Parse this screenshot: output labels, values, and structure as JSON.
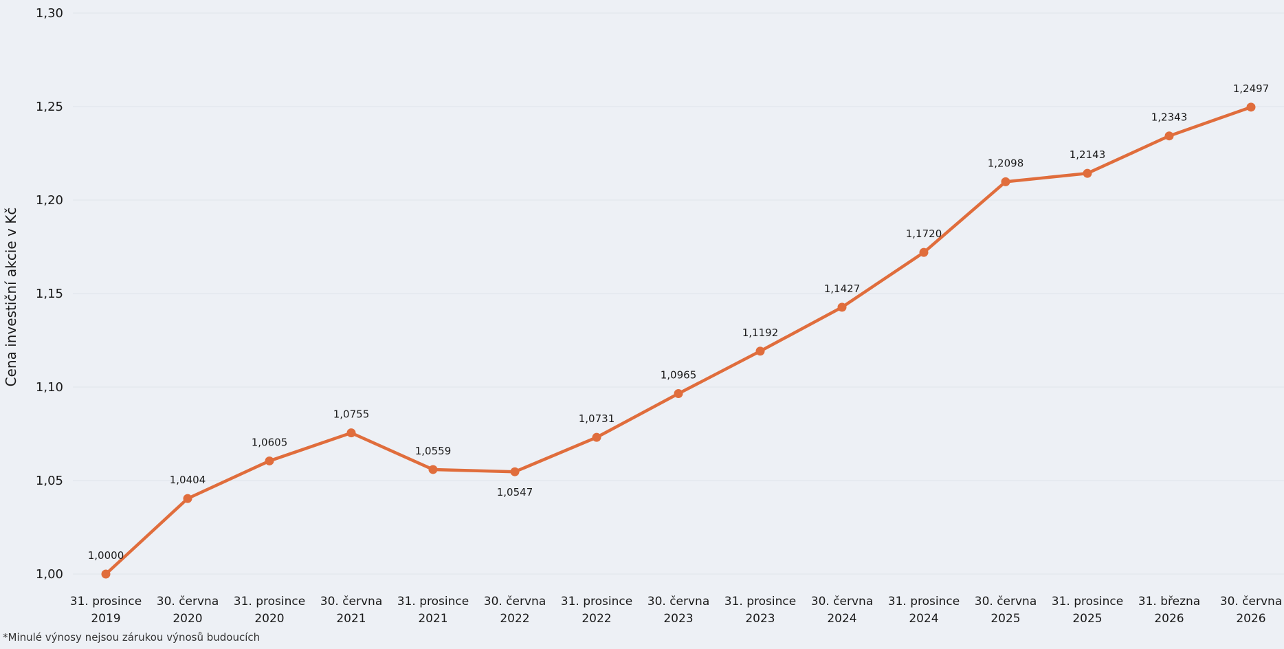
{
  "chart_data": {
    "type": "line",
    "title": "",
    "xlabel": "",
    "ylabel": "Cena investiční akcie v Kč",
    "ylim": [
      1.0,
      1.3
    ],
    "yticks": [
      "1,00",
      "1,05",
      "1,10",
      "1,15",
      "1,20",
      "1,25",
      "1,30"
    ],
    "ytick_values": [
      1.0,
      1.05,
      1.1,
      1.15,
      1.2,
      1.25,
      1.3
    ],
    "grid": true,
    "categories": [
      [
        "31. prosince",
        "2019"
      ],
      [
        "30. června",
        "2020"
      ],
      [
        "31. prosince",
        "2020"
      ],
      [
        "30. června",
        "2021"
      ],
      [
        "31. prosince",
        "2021"
      ],
      [
        "30. června",
        "2022"
      ],
      [
        "31. prosince",
        "2022"
      ],
      [
        "30. června",
        "2023"
      ],
      [
        "31. prosince",
        "2023"
      ],
      [
        "30. června",
        "2024"
      ],
      [
        "31. prosince",
        "2024"
      ],
      [
        "30. června",
        "2025"
      ],
      [
        "31. prosince",
        "2025"
      ],
      [
        "31. března",
        "2026"
      ],
      [
        "30. června",
        "2026"
      ]
    ],
    "series": [
      {
        "values": [
          1.0,
          1.0404,
          1.0605,
          1.0755,
          1.0559,
          1.0547,
          1.0731,
          1.0965,
          1.1192,
          1.1427,
          1.172,
          1.2098,
          1.2143,
          1.2343,
          1.2497
        ],
        "labels": [
          "1,0000",
          "1,0404",
          "1,0605",
          "1,0755",
          "1,0559",
          "1,0547",
          "1,0731",
          "1,0965",
          "1,1192",
          "1,1427",
          "1,1720",
          "1,2098",
          "1,2143",
          "1,2343",
          "1,2497"
        ],
        "label_below": [
          false,
          false,
          false,
          false,
          false,
          true,
          false,
          false,
          false,
          false,
          false,
          false,
          false,
          false,
          false
        ],
        "color": "#e06d3c"
      }
    ]
  },
  "footnote": "*Minulé výnosy nejsou zárukou výnosů budoucích",
  "colors": {
    "background": "#edf0f5",
    "grid": "#dfe3ea",
    "line": "#e06d3c"
  }
}
